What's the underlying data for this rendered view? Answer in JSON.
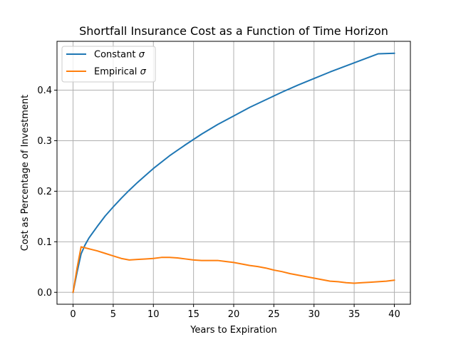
{
  "chart_data": {
    "type": "line",
    "title": "Shortfall Insurance Cost as a Function of Time Horizon",
    "xlabel": "Years to Expiration",
    "ylabel": "Cost as Percentage of Investment",
    "xlim": [
      -2,
      42
    ],
    "ylim": [
      -0.0236,
      0.4966
    ],
    "xticks": [
      0,
      5,
      10,
      15,
      20,
      25,
      30,
      35,
      40
    ],
    "xtick_labels": [
      "0",
      "5",
      "10",
      "15",
      "20",
      "25",
      "30",
      "35",
      "40"
    ],
    "yticks": [
      0.0,
      0.1,
      0.2,
      0.3,
      0.4
    ],
    "ytick_labels": [
      "0.0",
      "0.1",
      "0.2",
      "0.3",
      "0.4"
    ],
    "grid": true,
    "legend_placement": "upper-left",
    "series": [
      {
        "name": "Constant σ",
        "legend_prefix": "Constant ",
        "legend_symbol": "σ",
        "color": "#1f77b4",
        "x": [
          0,
          0.5,
          1,
          1.5,
          2,
          3,
          4,
          5,
          6,
          7,
          8,
          9,
          10,
          12,
          14,
          16,
          18,
          20,
          22,
          24,
          26,
          28,
          30,
          32,
          34,
          36,
          38,
          40
        ],
        "y": [
          0.0,
          0.04,
          0.076,
          0.094,
          0.108,
          0.13,
          0.151,
          0.169,
          0.186,
          0.202,
          0.217,
          0.231,
          0.245,
          0.27,
          0.292,
          0.313,
          0.332,
          0.349,
          0.366,
          0.381,
          0.396,
          0.41,
          0.423,
          0.436,
          0.448,
          0.46,
          0.472,
          0.473
        ]
      },
      {
        "name": "Empirical σ",
        "legend_prefix": "Empirical ",
        "legend_symbol": "σ",
        "color": "#ff7f0e",
        "x": [
          0,
          0.5,
          1,
          2,
          3,
          4,
          5,
          6,
          7,
          8,
          9,
          10,
          11,
          12,
          13,
          14,
          15,
          16,
          17,
          18,
          19,
          20,
          21,
          22,
          23,
          24,
          25,
          26,
          27,
          28,
          29,
          30,
          31,
          32,
          33,
          34,
          35,
          36,
          37,
          38,
          39,
          40
        ],
        "y": [
          0.0,
          0.048,
          0.09,
          0.086,
          0.082,
          0.077,
          0.072,
          0.067,
          0.064,
          0.065,
          0.066,
          0.067,
          0.069,
          0.069,
          0.068,
          0.066,
          0.064,
          0.063,
          0.063,
          0.063,
          0.061,
          0.059,
          0.056,
          0.053,
          0.051,
          0.048,
          0.044,
          0.041,
          0.037,
          0.034,
          0.031,
          0.028,
          0.025,
          0.022,
          0.021,
          0.019,
          0.018,
          0.019,
          0.02,
          0.021,
          0.022,
          0.024
        ]
      }
    ]
  }
}
